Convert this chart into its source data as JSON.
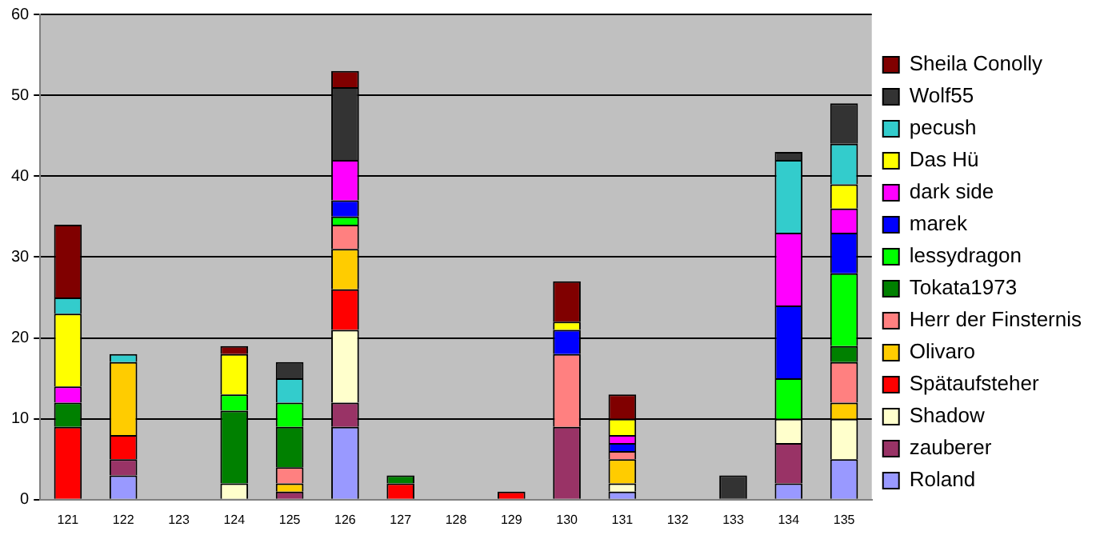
{
  "chart_data": {
    "type": "bar",
    "stacked": true,
    "categories": [
      "121",
      "122",
      "123",
      "124",
      "125",
      "126",
      "127",
      "128",
      "129",
      "130",
      "131",
      "132",
      "133",
      "134",
      "135"
    ],
    "ylim": [
      0,
      60
    ],
    "yticks": [
      0,
      10,
      20,
      30,
      40,
      50,
      60
    ],
    "grid": "y",
    "legend": "right",
    "series": [
      {
        "name": "Roland",
        "color": "#9999ff",
        "values": [
          null,
          3,
          null,
          null,
          null,
          9,
          null,
          null,
          null,
          null,
          1,
          null,
          null,
          2,
          5
        ]
      },
      {
        "name": "zauberer",
        "color": "#993366",
        "values": [
          null,
          2,
          null,
          null,
          1,
          3,
          null,
          null,
          null,
          9,
          null,
          null,
          null,
          5,
          null
        ]
      },
      {
        "name": "Shadow",
        "color": "#ffffcc",
        "values": [
          null,
          null,
          null,
          2,
          null,
          9,
          null,
          null,
          null,
          null,
          1,
          null,
          null,
          3,
          5
        ]
      },
      {
        "name": "Spätaufsteher",
        "color": "#ff0000",
        "values": [
          9,
          3,
          null,
          null,
          null,
          5,
          2,
          null,
          1,
          null,
          null,
          null,
          null,
          null,
          null
        ]
      },
      {
        "name": "Olivaro",
        "color": "#ffcc00",
        "values": [
          null,
          9,
          null,
          null,
          1,
          5,
          null,
          null,
          null,
          null,
          3,
          null,
          null,
          null,
          2
        ]
      },
      {
        "name": "Herr der Finsternis",
        "color": "#ff8080",
        "values": [
          null,
          null,
          null,
          null,
          2,
          3,
          null,
          null,
          null,
          9,
          1,
          null,
          null,
          null,
          5
        ]
      },
      {
        "name": "Tokata1973",
        "color": "#008000",
        "values": [
          3,
          null,
          null,
          9,
          5,
          null,
          1,
          null,
          null,
          null,
          null,
          null,
          null,
          null,
          2
        ]
      },
      {
        "name": "lessydragon",
        "color": "#00ff00",
        "values": [
          null,
          null,
          null,
          2,
          3,
          1,
          null,
          null,
          null,
          null,
          null,
          null,
          null,
          5,
          9
        ]
      },
      {
        "name": "marek",
        "color": "#0000ff",
        "values": [
          null,
          null,
          null,
          null,
          null,
          2,
          null,
          null,
          null,
          3,
          1,
          null,
          null,
          9,
          5
        ]
      },
      {
        "name": "dark side",
        "color": "#ff00ff",
        "values": [
          2,
          null,
          null,
          null,
          null,
          5,
          null,
          null,
          null,
          null,
          1,
          null,
          null,
          9,
          3
        ]
      },
      {
        "name": "Das Hü",
        "color": "#ffff00",
        "values": [
          9,
          null,
          null,
          5,
          null,
          null,
          null,
          null,
          null,
          1,
          2,
          null,
          null,
          null,
          3
        ]
      },
      {
        "name": "pecush",
        "color": "#33cccc",
        "values": [
          2,
          1,
          null,
          null,
          3,
          null,
          null,
          null,
          null,
          null,
          null,
          null,
          null,
          9,
          5
        ]
      },
      {
        "name": "Wolf55",
        "color": "#333333",
        "values": [
          null,
          null,
          null,
          null,
          2,
          9,
          null,
          null,
          null,
          null,
          null,
          null,
          3,
          1,
          5
        ]
      },
      {
        "name": "Sheila Conolly",
        "color": "#800000",
        "values": [
          9,
          null,
          null,
          1,
          null,
          2,
          null,
          null,
          null,
          5,
          3,
          null,
          null,
          null,
          null
        ]
      }
    ]
  }
}
